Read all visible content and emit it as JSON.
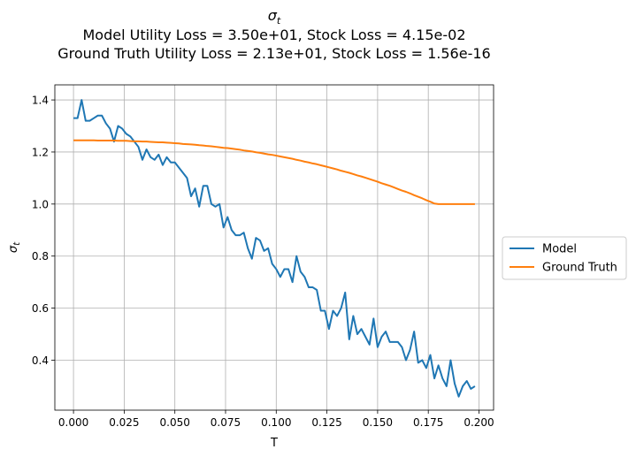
{
  "chart_data": {
    "type": "line",
    "title_lines": [
      "σ",
      "Model Utility Loss = 3.50e+01, Stock Loss = 4.15e-02",
      "Ground Truth Utility Loss = 2.13e+01, Stock Loss = 1.56e-16"
    ],
    "title_subscript": "t",
    "xlabel": "T",
    "ylabel": "σ",
    "ylabel_subscript": "t",
    "xlim": [
      -0.0092,
      0.2072
    ],
    "ylim": [
      0.208,
      1.458
    ],
    "xticks": [
      0.0,
      0.025,
      0.05,
      0.075,
      0.1,
      0.125,
      0.15,
      0.175,
      0.2
    ],
    "xtick_labels": [
      "0.000",
      "0.025",
      "0.050",
      "0.075",
      "0.100",
      "0.125",
      "0.150",
      "0.175",
      "0.200"
    ],
    "yticks": [
      0.4,
      0.6,
      0.8,
      1.0,
      1.2,
      1.4
    ],
    "ytick_labels": [
      "0.4",
      "0.6",
      "0.8",
      "1.0",
      "1.2",
      "1.4"
    ],
    "grid": true,
    "legend_position": "outside-right",
    "x_step": 0.002,
    "series": [
      {
        "name": "Model",
        "color": "#1f77b4",
        "values": [
          1.33,
          1.33,
          1.4,
          1.32,
          1.32,
          1.33,
          1.34,
          1.34,
          1.31,
          1.29,
          1.24,
          1.3,
          1.29,
          1.27,
          1.26,
          1.24,
          1.22,
          1.17,
          1.21,
          1.18,
          1.17,
          1.19,
          1.15,
          1.18,
          1.16,
          1.16,
          1.14,
          1.12,
          1.1,
          1.03,
          1.06,
          0.99,
          1.07,
          1.07,
          1.0,
          0.99,
          1.0,
          0.91,
          0.95,
          0.9,
          0.88,
          0.88,
          0.89,
          0.83,
          0.79,
          0.87,
          0.86,
          0.82,
          0.83,
          0.77,
          0.75,
          0.72,
          0.75,
          0.75,
          0.7,
          0.8,
          0.74,
          0.72,
          0.68,
          0.68,
          0.67,
          0.59,
          0.59,
          0.52,
          0.59,
          0.57,
          0.6,
          0.66,
          0.48,
          0.57,
          0.5,
          0.52,
          0.49,
          0.46,
          0.56,
          0.45,
          0.49,
          0.51,
          0.47,
          0.47,
          0.47,
          0.45,
          0.4,
          0.44,
          0.51,
          0.39,
          0.4,
          0.37,
          0.42,
          0.33,
          0.38,
          0.33,
          0.3,
          0.4,
          0.31,
          0.26,
          0.3,
          0.32,
          0.29,
          0.3
        ]
      },
      {
        "name": "Ground Truth",
        "color": "#ff7f0e",
        "values": [
          1.245,
          1.245,
          1.245,
          1.245,
          1.245,
          1.245,
          1.244,
          1.244,
          1.244,
          1.244,
          1.244,
          1.243,
          1.243,
          1.243,
          1.242,
          1.241,
          1.241,
          1.24,
          1.24,
          1.239,
          1.238,
          1.237,
          1.237,
          1.236,
          1.235,
          1.234,
          1.233,
          1.231,
          1.23,
          1.229,
          1.228,
          1.226,
          1.225,
          1.223,
          1.222,
          1.22,
          1.218,
          1.216,
          1.215,
          1.213,
          1.211,
          1.209,
          1.206,
          1.204,
          1.202,
          1.199,
          1.197,
          1.194,
          1.191,
          1.189,
          1.186,
          1.183,
          1.18,
          1.177,
          1.174,
          1.17,
          1.167,
          1.163,
          1.16,
          1.156,
          1.153,
          1.149,
          1.145,
          1.141,
          1.137,
          1.133,
          1.128,
          1.124,
          1.12,
          1.115,
          1.11,
          1.106,
          1.101,
          1.096,
          1.091,
          1.086,
          1.08,
          1.075,
          1.07,
          1.064,
          1.058,
          1.052,
          1.047,
          1.041,
          1.034,
          1.028,
          1.022,
          1.015,
          1.009,
          1.002,
          1.0,
          1.0,
          1.0,
          1.0,
          1.0,
          1.0,
          1.0,
          1.0,
          1.0,
          1.0
        ]
      }
    ]
  }
}
